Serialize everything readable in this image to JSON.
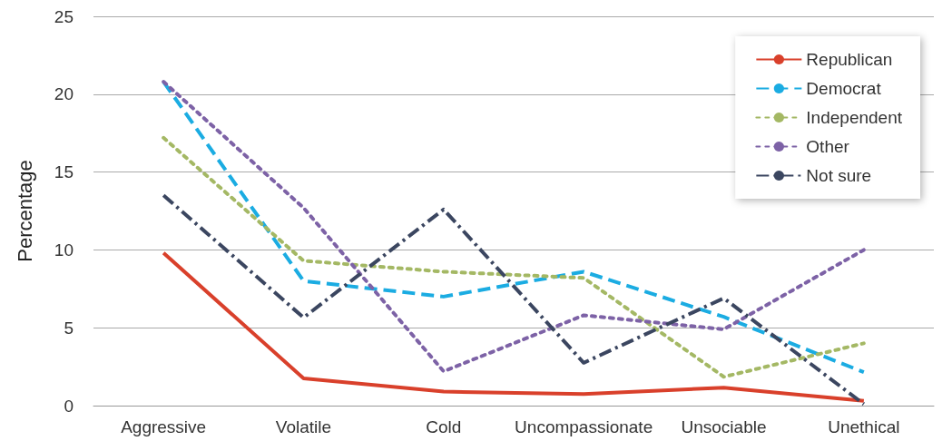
{
  "chart_data": {
    "type": "line",
    "ylabel": "Percentage",
    "categories": [
      "Aggressive",
      "Volatile",
      "Cold",
      "Uncompassionate",
      "Unsociable",
      "Unethical"
    ],
    "series": [
      {
        "name": "Republican",
        "color": "#d9402b",
        "line_style": "solid",
        "values": [
          9.8,
          1.75,
          0.9,
          0.75,
          1.15,
          0.3
        ]
      },
      {
        "name": "Democrat",
        "color": "#1bace2",
        "line_style": "dashed",
        "values": [
          20.8,
          8.0,
          7.0,
          8.6,
          5.7,
          2.15
        ]
      },
      {
        "name": "Independent",
        "color": "#a4b864",
        "line_style": "dotted",
        "values": [
          17.2,
          9.3,
          8.6,
          8.2,
          1.85,
          4.0
        ]
      },
      {
        "name": "Other",
        "color": "#7d62a6",
        "line_style": "dotted",
        "values": [
          20.8,
          12.7,
          2.2,
          5.8,
          4.9,
          10.0
        ]
      },
      {
        "name": "Not sure",
        "color": "#3b4660",
        "line_style": "dashdot",
        "values": [
          13.5,
          5.65,
          12.6,
          2.75,
          6.9,
          0.1
        ]
      }
    ],
    "ylim": [
      0,
      25
    ],
    "yticks": [
      0,
      5,
      10,
      15,
      20,
      25
    ],
    "grid": "y",
    "legend": "top right",
    "marker": "none"
  }
}
